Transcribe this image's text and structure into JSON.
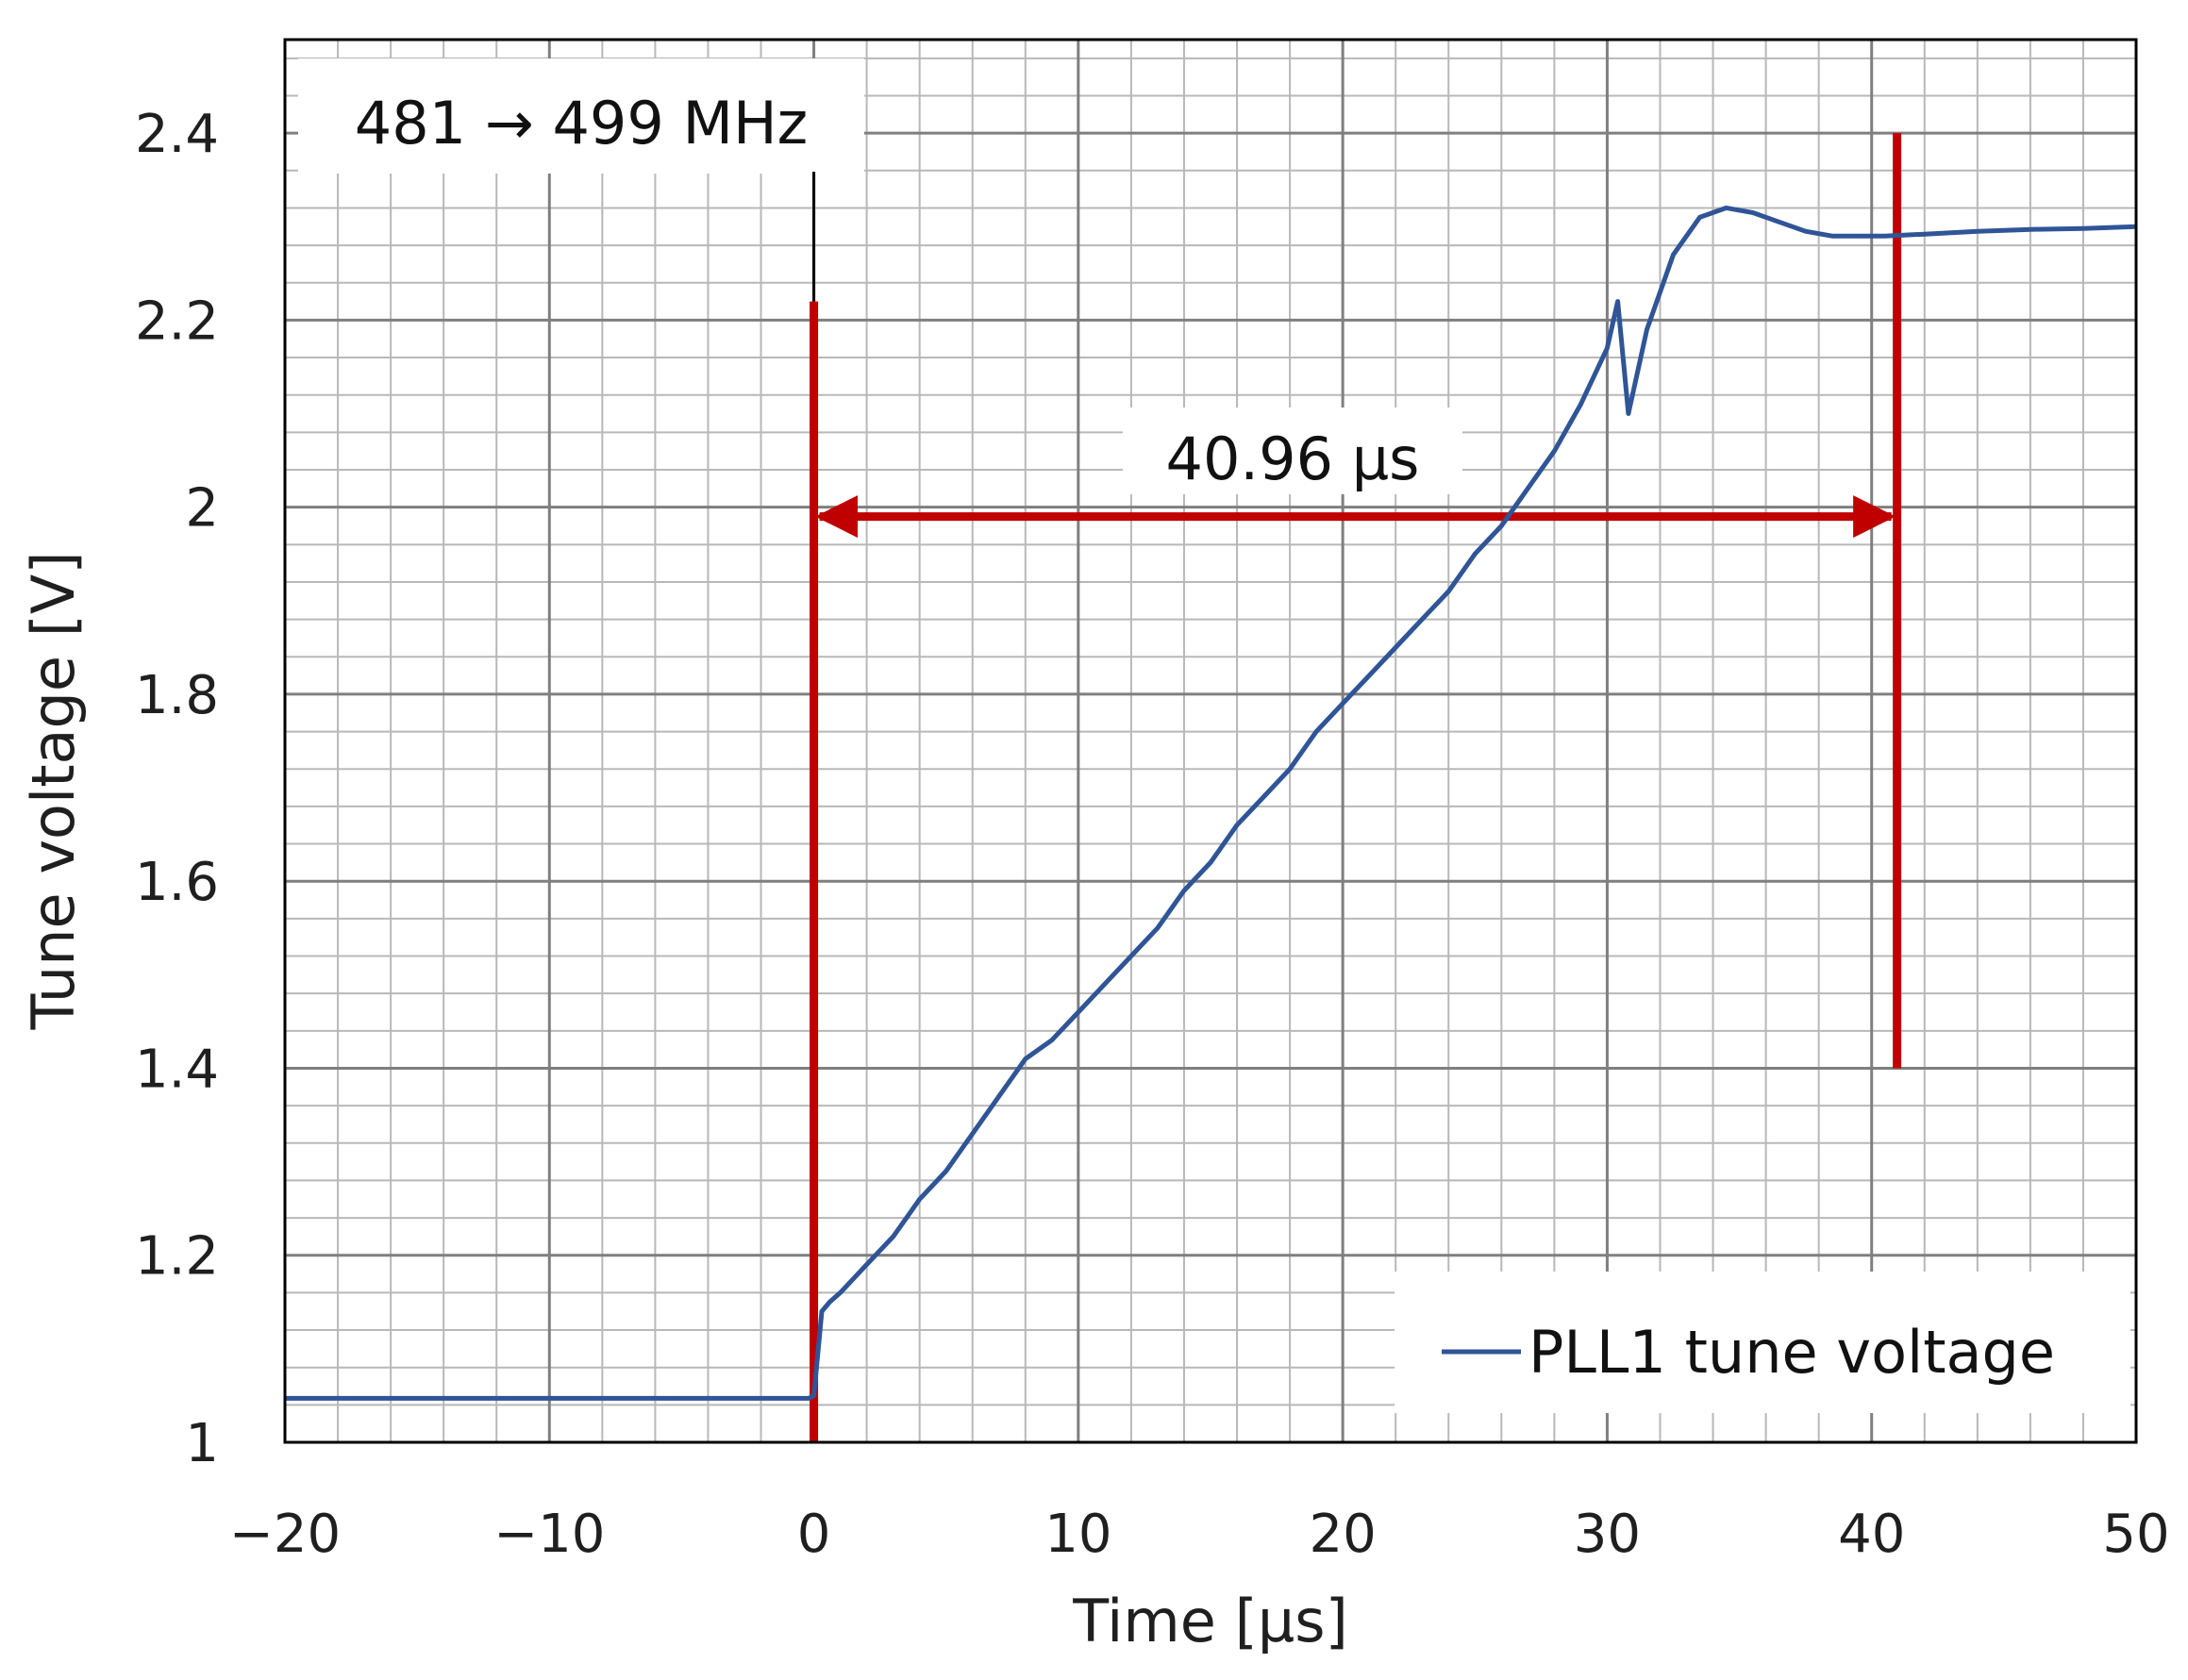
{
  "chart_data": {
    "type": "line",
    "title": "",
    "xlabel": "Time [µs]",
    "ylabel": "Tune voltage [V]",
    "xlim": [
      -20,
      50
    ],
    "ylim": [
      1,
      2.5
    ],
    "x_ticks": [
      -20,
      -10,
      0,
      10,
      20,
      30,
      40,
      50
    ],
    "x_tick_labels": [
      "−20",
      "−10",
      "0",
      "10",
      "20",
      "30",
      "40",
      "50"
    ],
    "y_ticks": [
      1,
      1.2,
      1.4,
      1.6,
      1.8,
      2,
      2.2,
      2.4
    ],
    "y_tick_labels": [
      "1",
      "1.2",
      "1.4",
      "1.6",
      "1.8",
      "2",
      "2.2",
      "2.4"
    ],
    "grid": {
      "major": true,
      "minor": true,
      "minor_per_major_x": 5,
      "minor_per_major_y": 5
    },
    "legend_position": "bottom-right",
    "series": [
      {
        "name": "PLL1 tune voltage",
        "color": "#2f5597",
        "x": [
          -20,
          -15,
          -10,
          -5,
          -0.2,
          0,
          0.3,
          0.6,
          1,
          2,
          3,
          4,
          5,
          6,
          7,
          8,
          9,
          10,
          11,
          12,
          13,
          14,
          15,
          16,
          17,
          18,
          19,
          20,
          21,
          22,
          23,
          24,
          25,
          26,
          27,
          28,
          29,
          30,
          30.4,
          30.8,
          31.5,
          32.5,
          33.5,
          34.5,
          35.5,
          36.5,
          37.5,
          38.5,
          39.5,
          40.5,
          42,
          44,
          46,
          48,
          50
        ],
        "y": [
          1.047,
          1.047,
          1.047,
          1.047,
          1.047,
          1.05,
          1.14,
          1.15,
          1.16,
          1.19,
          1.22,
          1.26,
          1.29,
          1.33,
          1.37,
          1.41,
          1.43,
          1.46,
          1.49,
          1.52,
          1.55,
          1.59,
          1.62,
          1.66,
          1.69,
          1.72,
          1.76,
          1.79,
          1.82,
          1.85,
          1.88,
          1.91,
          1.95,
          1.98,
          2.02,
          2.06,
          2.11,
          2.17,
          2.22,
          2.1,
          2.19,
          2.27,
          2.31,
          2.32,
          2.315,
          2.305,
          2.295,
          2.29,
          2.29,
          2.29,
          2.292,
          2.295,
          2.297,
          2.298,
          2.3
        ]
      }
    ],
    "annotations": [
      {
        "text": "481 → 499 MHz",
        "position": "top-left"
      },
      {
        "text": "40.96 µs",
        "arrow_from_x": 0,
        "arrow_to_x": 40.96,
        "arrow_y": 1.99,
        "color": "#c00000"
      }
    ],
    "markers": [
      {
        "x": 0,
        "y_from": 1,
        "y_to": 2.22,
        "color": "#c00000"
      },
      {
        "x": 40.96,
        "y_from": 1.4,
        "y_to": 2.4,
        "color": "#c00000"
      }
    ]
  }
}
